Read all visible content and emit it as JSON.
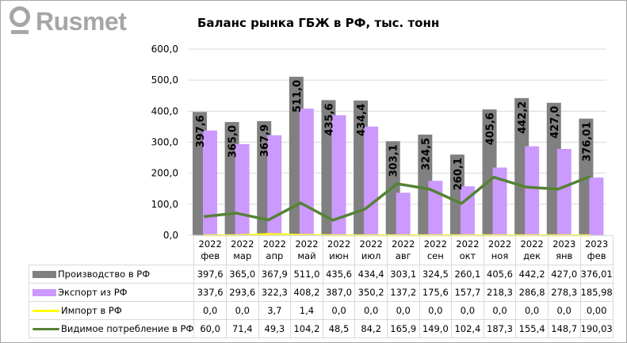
{
  "logo": {
    "text": "Rusmet"
  },
  "chart_data": {
    "type": "bar",
    "title": "Баланс рынка ГБЖ в РФ, тыс. тонн",
    "categories": [
      [
        "2022",
        "фев"
      ],
      [
        "2022",
        "мар"
      ],
      [
        "2022",
        "апр"
      ],
      [
        "2022",
        "май"
      ],
      [
        "2022",
        "июн"
      ],
      [
        "2022",
        "июл"
      ],
      [
        "2022",
        "авг"
      ],
      [
        "2022",
        "сен"
      ],
      [
        "2022",
        "окт"
      ],
      [
        "2022",
        "ноя"
      ],
      [
        "2022",
        "дек"
      ],
      [
        "2023",
        "янв"
      ],
      [
        "2023",
        "фев"
      ]
    ],
    "ylim": [
      0,
      600
    ],
    "yticks": [
      "0,0",
      "100,0",
      "200,0",
      "300,0",
      "400,0",
      "500,0",
      "600,0"
    ],
    "grid": true,
    "legend": "table-bottom",
    "series": [
      {
        "name": "Производство в РФ",
        "kind": "bar",
        "color": "#808080",
        "values": [
          397.6,
          365.0,
          367.9,
          511.0,
          435.6,
          434.4,
          303.1,
          324.5,
          260.1,
          405.6,
          442.2,
          427.0,
          376.01
        ],
        "labels": [
          "397,6",
          "365,0",
          "367,9",
          "511,0",
          "435,6",
          "434,4",
          "303,1",
          "324,5",
          "260,1",
          "405,6",
          "442,2",
          "427,0",
          "376,01"
        ],
        "data_labels": [
          "397,6",
          "365,0",
          "367,9",
          "511,0",
          "435,6",
          "434,4",
          "303,1",
          "324,5",
          "260,1",
          "405,6",
          "442,2",
          "427,0",
          "376,01"
        ]
      },
      {
        "name": "Экспорт из РФ",
        "kind": "bar",
        "color": "#cc99ff",
        "values": [
          337.6,
          293.6,
          322.3,
          408.2,
          387.0,
          350.2,
          137.2,
          175.6,
          157.7,
          218.3,
          286.8,
          278.3,
          185.98
        ],
        "labels": [
          "337,6",
          "293,6",
          "322,3",
          "408,2",
          "387,0",
          "350,2",
          "137,2",
          "175,6",
          "157,7",
          "218,3",
          "286,8",
          "278,3",
          "185,98"
        ]
      },
      {
        "name": "Импорт в РФ",
        "kind": "line",
        "color": "#ffff00",
        "values": [
          0.0,
          0.0,
          3.7,
          1.4,
          0.0,
          0.0,
          0.0,
          0.0,
          0.0,
          0.0,
          0.0,
          0.0,
          0.0
        ],
        "labels": [
          "0,0",
          "0,0",
          "3,7",
          "1,4",
          "0,0",
          "0,0",
          "0,0",
          "0,0",
          "0,0",
          "0,0",
          "0,0",
          "0,0",
          "0,00"
        ]
      },
      {
        "name": "Видимое потребление в РФ",
        "kind": "line",
        "color": "#548235",
        "values": [
          60.0,
          71.4,
          49.3,
          104.2,
          48.5,
          84.2,
          165.9,
          149.0,
          102.4,
          187.3,
          155.4,
          148.7,
          190.03
        ],
        "labels": [
          "60,0",
          "71,4",
          "49,3",
          "104,2",
          "48,5",
          "84,2",
          "165,9",
          "149,0",
          "102,4",
          "187,3",
          "155,4",
          "148,7",
          "190,03"
        ]
      }
    ]
  }
}
